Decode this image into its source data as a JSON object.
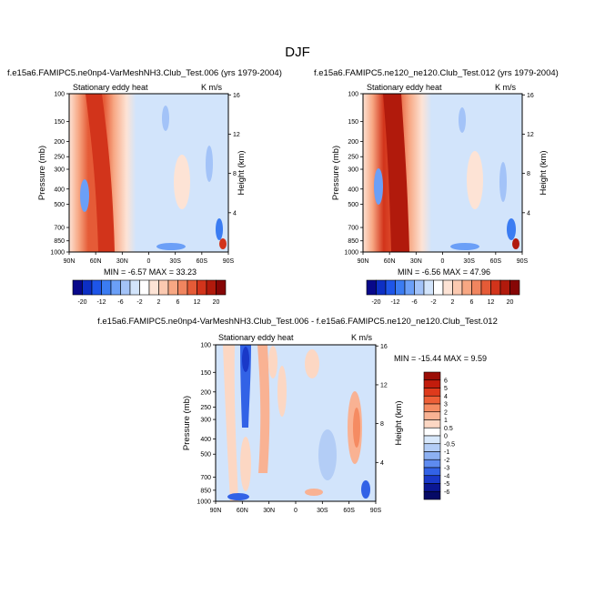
{
  "figure": {
    "title": "DJF"
  },
  "chart_data": [
    {
      "type": "heatmap",
      "title": "f.e15a6.FAMIPC5.ne0np4-VarMeshNH3.Club_Test.006 (yrs 1979-2004)",
      "left_label": "Stationary eddy heat",
      "right_label": "K m/s",
      "ylabel": "Pressure (mb)",
      "y2label": "Height (km)",
      "x_ticks": [
        "90N",
        "60N",
        "30N",
        "0",
        "30S",
        "60S",
        "90S"
      ],
      "y_ticks": [
        "100",
        "150",
        "200",
        "250",
        "300",
        "400",
        "500",
        "700",
        "850",
        "1000"
      ],
      "y2_ticks": [
        "16",
        "12",
        "8",
        "4"
      ],
      "stats_text": "MIN =  -6.57   MAX =  33.23",
      "min": -6.57,
      "max": 33.23
    },
    {
      "type": "heatmap",
      "title": "f.e15a6.FAMIPC5.ne120_ne120.Club_Test.012 (yrs 1979-2004)",
      "left_label": "Stationary eddy heat",
      "right_label": "K m/s",
      "ylabel": "Pressure (mb)",
      "y2label": "Height (km)",
      "x_ticks": [
        "90N",
        "60N",
        "30N",
        "0",
        "30S",
        "60S",
        "90S"
      ],
      "y_ticks": [
        "100",
        "150",
        "200",
        "250",
        "300",
        "400",
        "500",
        "700",
        "850",
        "1000"
      ],
      "y2_ticks": [
        "16",
        "12",
        "8",
        "4"
      ],
      "stats_text": "MIN =  -6.56   MAX =  47.96",
      "min": -6.56,
      "max": 47.96
    },
    {
      "type": "heatmap",
      "title": "f.e15a6.FAMIPC5.ne0np4-VarMeshNH3.Club_Test.006 - f.e15a6.FAMIPC5.ne120_ne120.Club_Test.012",
      "left_label": "Stationary eddy heat",
      "right_label": "K m/s",
      "ylabel": "Pressure (mb)",
      "y2label": "Height (km)",
      "x_ticks": [
        "90N",
        "60N",
        "30N",
        "0",
        "30S",
        "60S",
        "90S"
      ],
      "y_ticks": [
        "100",
        "150",
        "200",
        "250",
        "300",
        "400",
        "500",
        "700",
        "850",
        "1000"
      ],
      "y2_ticks": [
        "16",
        "12",
        "8",
        "4"
      ],
      "stats_text": "MIN = -15.44   MAX =   9.59",
      "min": -15.44,
      "max": 9.59
    }
  ],
  "colorbar_top": {
    "labels": [
      "-20",
      "-12",
      "-6",
      "-2",
      "2",
      "6",
      "12",
      "20"
    ],
    "colors": [
      "#08088a",
      "#0d2fc4",
      "#1e55e8",
      "#3b7cf2",
      "#6b9ff7",
      "#a3c3f8",
      "#d2e4fb",
      "#ffffff",
      "#fde3d5",
      "#fbc9b0",
      "#f7a783",
      "#f0855f",
      "#e55b37",
      "#d2341b",
      "#b11a0c",
      "#860606"
    ]
  },
  "colorbar_diff": {
    "labels": [
      "6",
      "5",
      "4",
      "3",
      "2",
      "1",
      "0.5",
      "0",
      "-0.5",
      "-1",
      "-2",
      "-3",
      "-4",
      "-5",
      "-6"
    ],
    "colors": [
      "#9b0d06",
      "#c21c0c",
      "#de3a1c",
      "#ee5f37",
      "#f58b62",
      "#f9b293",
      "#fcd7c3",
      "#ffffff",
      "#d8e8fb",
      "#b3cdf6",
      "#8cb0f2",
      "#5e8bf0",
      "#3262e6",
      "#1938c8",
      "#0b1794",
      "#060a66"
    ]
  }
}
